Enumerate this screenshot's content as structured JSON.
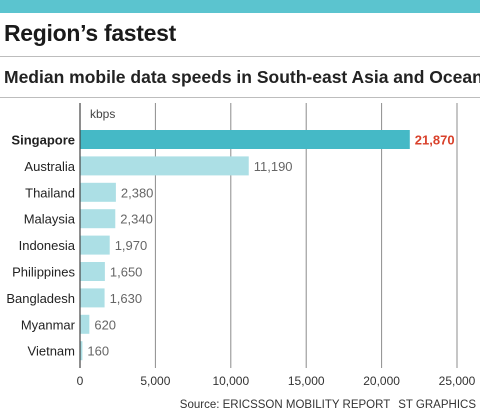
{
  "header": {
    "title": "Region’s fastest",
    "subtitle": "Median mobile data speeds in South-east Asia and Oceania"
  },
  "footer": {
    "source": "Source: ERICSSON MOBILITY REPORT",
    "credit": "ST GRAPHICS"
  },
  "colors": {
    "accent": "#5bc4cf",
    "highlight_bar": "#45b9c6",
    "bar": "#acdfe5",
    "highlight_value": "#d9412b",
    "grid": "#8c8c8c"
  },
  "chart_data": {
    "type": "bar",
    "orientation": "horizontal",
    "unit_label": "kbps",
    "categories": [
      "Singapore",
      "Australia",
      "Thailand",
      "Malaysia",
      "Indonesia",
      "Philippines",
      "Bangladesh",
      "Myanmar",
      "Vietnam"
    ],
    "values": [
      21870,
      11190,
      2380,
      2340,
      1970,
      1650,
      1630,
      620,
      160
    ],
    "value_labels": [
      "21,870",
      "11,190",
      "2,380",
      "2,340",
      "1,970",
      "1,650",
      "1,630",
      "620",
      "160"
    ],
    "highlight": "Singapore",
    "xlim": [
      0,
      25000
    ],
    "x_ticks": [
      0,
      5000,
      10000,
      15000,
      20000,
      25000
    ],
    "x_tick_labels": [
      "0",
      "5,000",
      "10,000",
      "15,000",
      "20,000",
      "25,000"
    ],
    "grid": true
  }
}
